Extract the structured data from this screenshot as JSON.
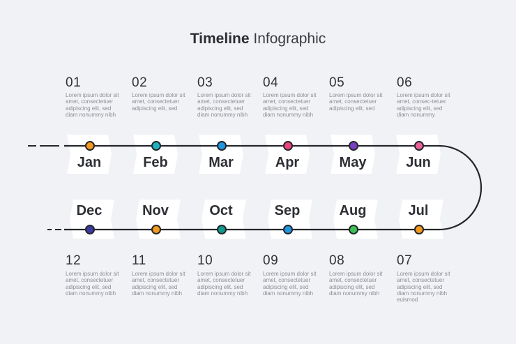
{
  "title": {
    "bold": "Timeline",
    "light": "Infographic"
  },
  "lorem": "Lorem ipsum dolor sit amet, consectetuer adipiscing elit, sed diam nonummy nibh",
  "top_row": [
    {
      "num": "01",
      "month": "Jan",
      "color": "#f39a1e",
      "text": "Lorem ipsum dolor sit amet, consectetuer adipiscing elit, sed diam nonummy nibh"
    },
    {
      "num": "02",
      "month": "Feb",
      "color": "#1fb1bf",
      "text": "Lorem ipsum dolor sit amet, consectetuer adipiscing elit, sed"
    },
    {
      "num": "03",
      "month": "Mar",
      "color": "#2196e0",
      "text": "Lorem ipsum dolor sit amet, consectetuer adipiscing elit, sed diam nonummy nibh"
    },
    {
      "num": "04",
      "month": "Apr",
      "color": "#e8457d",
      "text": "Lorem ipsum dolor sit amet, consectetuer adipiscing elit, sed diam nonummy nibh"
    },
    {
      "num": "05",
      "month": "May",
      "color": "#7a3fc0",
      "text": "Lorem ipsum dolor sit amet, consectetuer adipiscing elit, sed"
    },
    {
      "num": "06",
      "month": "Jun",
      "color": "#ee5f9a",
      "text": "Lorem ipsum dolor sit amet, consec-tetuer adipiscing elit, sed diam nonummy"
    }
  ],
  "bottom_row": [
    {
      "num": "12",
      "month": "Dec",
      "color": "#3a3aa0",
      "text": "Lorem ipsum dolor sit amet, consectetuer adipiscing elit, sed diam nonummy nibh"
    },
    {
      "num": "11",
      "month": "Nov",
      "color": "#f39a1e",
      "text": "Lorem ipsum dolor sit amet, consectetuer adipiscing elit, sed diam nonummy nibh"
    },
    {
      "num": "10",
      "month": "Oct",
      "color": "#119a8a",
      "text": "Lorem ipsum dolor sit amet, consectetuer adipiscing elit, sed diam nonummy nibh"
    },
    {
      "num": "09",
      "month": "Sep",
      "color": "#2196e0",
      "text": "Lorem ipsum dolor sit amet, consectetuer adipiscing elit, sed diam nonummy nibh"
    },
    {
      "num": "08",
      "month": "Aug",
      "color": "#3cc152",
      "text": "Lorem ipsum dolor sit amet, consectetuer adipiscing elit, sed diam nonummy nibh"
    },
    {
      "num": "07",
      "month": "Jul",
      "color": "#f39a1e",
      "text": "Lorem ipsum dolor sit amet, consectetuer adipiscing elit, sed diam nonummy nibh euismod"
    }
  ],
  "line_color": "#24262b"
}
